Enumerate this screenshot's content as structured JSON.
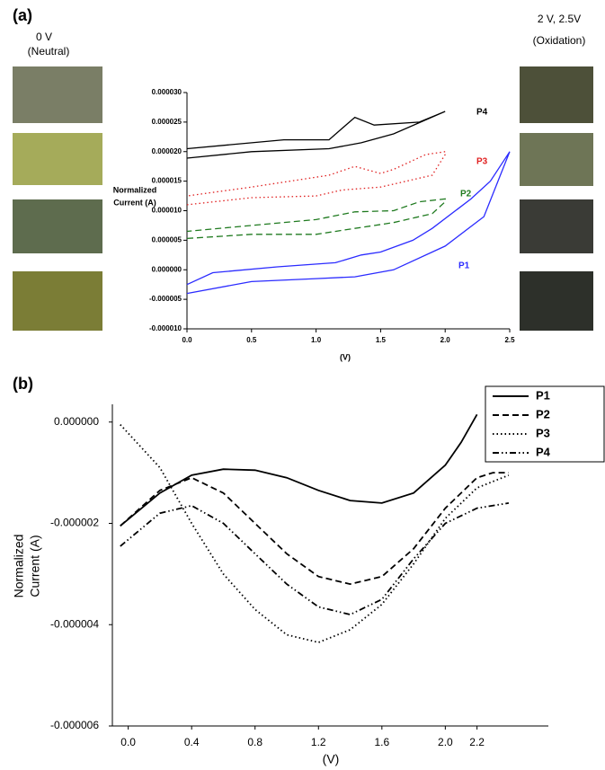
{
  "figure": {
    "left_title": [
      "0 V",
      "(Neutral)"
    ],
    "right_title": [
      "2 V, 2.5V",
      "(Oxidation)"
    ]
  },
  "chart_data": [
    {
      "type": "line",
      "panel_label": "(a)",
      "xlabel": "(V)",
      "ylabel": [
        "Normalized",
        "Current (A)"
      ],
      "xlim": [
        0,
        2.5
      ],
      "xticks": [
        {
          "value": 0,
          "label": "0.0"
        },
        0.5,
        {
          "value": 1,
          "label": "1.0"
        },
        1.5,
        {
          "value": 2,
          "label": "2.0"
        },
        2.5
      ],
      "ylim": [
        -1e-05,
        3e-05
      ],
      "yticks": [
        {
          "value": 3e-05,
          "label": "0.000030"
        },
        {
          "value": 2.5e-05,
          "label": "0.000025"
        },
        {
          "value": 2e-05,
          "label": "0.000020"
        },
        {
          "value": 1.5e-05,
          "label": "0.000015"
        },
        {
          "value": 1e-05,
          "label": "0.000010"
        },
        {
          "value": 5e-06,
          "label": "0.000005"
        },
        {
          "value": 0,
          "label": "0.000000"
        },
        {
          "value": -5e-06,
          "label": "-0.000005"
        },
        {
          "value": -1e-05,
          "label": "-0.000010"
        }
      ],
      "legend": false,
      "series": [
        {
          "name": "P1",
          "color": "#2b2bff",
          "line_style": "solid",
          "x": [
            0,
            0.5,
            1.0,
            1.3,
            1.6,
            2.0,
            2.3,
            2.5,
            2.35,
            2.2,
            1.9,
            1.75,
            1.5,
            1.35,
            1.15,
            0.7,
            0.2,
            0
          ],
          "values": [
            -4e-06,
            -2e-06,
            -1.5e-06,
            -1.2e-06,
            0,
            4e-06,
            9e-06,
            2e-05,
            1.5e-05,
            1.2e-05,
            7e-06,
            5e-06,
            3e-06,
            2.5e-06,
            1.2e-06,
            5e-07,
            -5e-07,
            -2.5e-06
          ]
        },
        {
          "name": "P2",
          "color": "#1f7a1f",
          "line_style": "dashed",
          "x": [
            0,
            0.5,
            1.0,
            1.3,
            1.6,
            1.9,
            2.0,
            2.0,
            1.8,
            1.6,
            1.3,
            1.0,
            0.5,
            0
          ],
          "values": [
            5.3e-06,
            6e-06,
            6e-06,
            7e-06,
            8e-06,
            9.5e-06,
            1.15e-05,
            1.2e-05,
            1.15e-05,
            1e-05,
            9.8e-06,
            8.5e-06,
            7.5e-06,
            6.5e-06
          ]
        },
        {
          "name": "P3",
          "color": "#e02020",
          "line_style": "dotted",
          "x": [
            0,
            0.5,
            1.0,
            1.2,
            1.5,
            1.9,
            2.0,
            2.0,
            1.85,
            1.6,
            1.5,
            1.3,
            1.1,
            0.5,
            0
          ],
          "values": [
            1.1e-05,
            1.22e-05,
            1.25e-05,
            1.35e-05,
            1.4e-05,
            1.6e-05,
            1.95e-05,
            2e-05,
            1.95e-05,
            1.7e-05,
            1.63e-05,
            1.75e-05,
            1.6e-05,
            1.4e-05,
            1.25e-05
          ]
        },
        {
          "name": "P4",
          "color": "#000000",
          "line_style": "solid",
          "x": [
            0,
            0.5,
            1.1,
            1.35,
            1.6,
            2.0,
            2.0,
            1.8,
            1.45,
            1.3,
            1.1,
            0.75,
            0
          ],
          "values": [
            1.89e-05,
            2e-05,
            2.05e-05,
            2.15e-05,
            2.3e-05,
            2.68e-05,
            2.68e-05,
            2.5e-05,
            2.45e-05,
            2.58e-05,
            2.2e-05,
            2.2e-05,
            2.05e-05
          ]
        }
      ]
    },
    {
      "type": "line",
      "panel_label": "(b)",
      "xlabel": "(V)",
      "ylabel": [
        "Normalized",
        "Current (A)"
      ],
      "xlim": [
        -0.1,
        2.65
      ],
      "xticks": [
        {
          "value": 0,
          "label": "0.0"
        },
        0.4,
        0.8,
        1.2,
        1.6,
        {
          "value": 2,
          "label": "2.0"
        },
        2.2
      ],
      "ylim": [
        -6e-06,
        3.5e-07
      ],
      "yticks": [
        {
          "value": 0,
          "label": "0.000000"
        },
        {
          "value": -2e-06,
          "label": "-0.000002"
        },
        {
          "value": -4e-06,
          "label": "-0.000004"
        },
        {
          "value": -6e-06,
          "label": "-0.000006"
        }
      ],
      "legend": "upper right",
      "series": [
        {
          "name": "P1",
          "color": "#000000",
          "line_style": "solid",
          "x": [
            -0.05,
            0.2,
            0.4,
            0.6,
            0.8,
            1.0,
            1.2,
            1.4,
            1.6,
            1.8,
            2.0,
            2.1,
            2.2
          ],
          "values": [
            -2.05e-06,
            -1.4e-06,
            -1.05e-06,
            -9.3e-07,
            -9.5e-07,
            -1.1e-06,
            -1.35e-06,
            -1.55e-06,
            -1.6e-06,
            -1.4e-06,
            -8.5e-07,
            -4e-07,
            1.5e-07
          ]
        },
        {
          "name": "P2",
          "color": "#000000",
          "line_style": "dashed",
          "x": [
            -0.05,
            0.2,
            0.4,
            0.6,
            0.8,
            1.0,
            1.2,
            1.4,
            1.6,
            1.8,
            2.0,
            2.2,
            2.3,
            2.4
          ],
          "values": [
            -2.05e-06,
            -1.35e-06,
            -1.1e-06,
            -1.4e-06,
            -2e-06,
            -2.6e-06,
            -3.05e-06,
            -3.2e-06,
            -3.05e-06,
            -2.5e-06,
            -1.7e-06,
            -1.1e-06,
            -1e-06,
            -1e-06
          ]
        },
        {
          "name": "P3",
          "color": "#000000",
          "line_style": "dotted",
          "x": [
            -0.05,
            0.2,
            0.4,
            0.6,
            0.8,
            1.0,
            1.2,
            1.4,
            1.6,
            1.8,
            2.0,
            2.2,
            2.4
          ],
          "values": [
            -5e-08,
            -9e-07,
            -2e-06,
            -3e-06,
            -3.7e-06,
            -4.2e-06,
            -4.35e-06,
            -4.1e-06,
            -3.6e-06,
            -2.8e-06,
            -1.9e-06,
            -1.3e-06,
            -1.05e-06
          ]
        },
        {
          "name": "P4",
          "color": "#000000",
          "line_style": "dashdotdot",
          "x": [
            -0.05,
            0.2,
            0.4,
            0.6,
            0.8,
            1.0,
            1.2,
            1.4,
            1.6,
            1.8,
            2.0,
            2.2,
            2.4
          ],
          "values": [
            -2.45e-06,
            -1.8e-06,
            -1.65e-06,
            -2e-06,
            -2.6e-06,
            -3.2e-06,
            -3.65e-06,
            -3.8e-06,
            -3.5e-06,
            -2.7e-06,
            -2e-06,
            -1.7e-06,
            -1.6e-06
          ]
        }
      ]
    }
  ]
}
